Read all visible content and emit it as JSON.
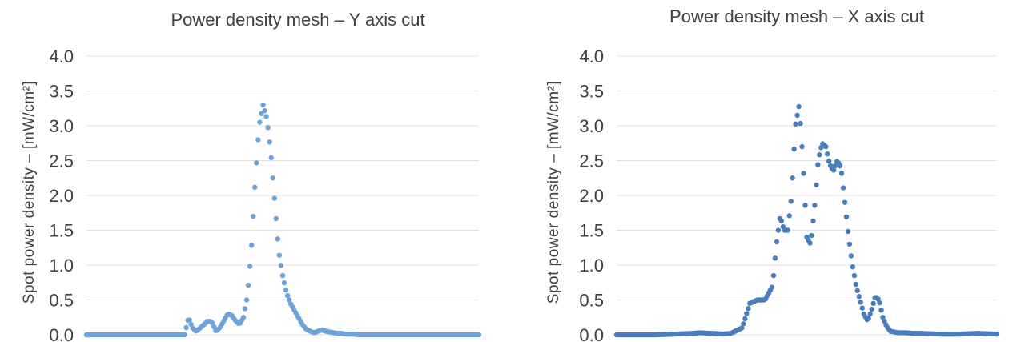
{
  "colors": {
    "left_series": "#6fa3d8",
    "right_series": "#4a7ebb",
    "grid": "#e0e0e0",
    "text": "#404040"
  },
  "chart_data": [
    {
      "type": "scatter",
      "title": "Power density mesh – Y axis cut",
      "ylabel": "Spot power density – [mW/cm²]",
      "xlabel": "",
      "ylim": [
        0,
        4
      ],
      "xlim": [
        0,
        100
      ],
      "yticks": [
        "0.0",
        "0.5",
        "1.0",
        "1.5",
        "2.0",
        "2.5",
        "3.0",
        "3.5",
        "4.0"
      ],
      "grid": true,
      "legend": "none",
      "series": [
        {
          "x": [
            0,
            5,
            10,
            15,
            20,
            25,
            26,
            27,
            28,
            29,
            30,
            31,
            32,
            33,
            34,
            35,
            36,
            37,
            38,
            39,
            40,
            41,
            42,
            43,
            44,
            45,
            46,
            47,
            48,
            49,
            50,
            51,
            52,
            53,
            54,
            55,
            56,
            57,
            58,
            59,
            60,
            61,
            62,
            63,
            64,
            65,
            66,
            67,
            68,
            69,
            70,
            72,
            74,
            76,
            78,
            80,
            85,
            90,
            95,
            100
          ],
          "y": [
            0,
            0,
            0,
            0,
            0,
            0,
            0.25,
            0.1,
            0.05,
            0.1,
            0.15,
            0.2,
            0.18,
            0.05,
            0.1,
            0.2,
            0.3,
            0.28,
            0.2,
            0.15,
            0.25,
            0.55,
            1.2,
            2.2,
            3.0,
            3.3,
            3.1,
            2.6,
            1.9,
            1.2,
            0.85,
            0.6,
            0.45,
            0.35,
            0.25,
            0.15,
            0.08,
            0.05,
            0.03,
            0.05,
            0.07,
            0.05,
            0.04,
            0.03,
            0.02,
            0.02,
            0.01,
            0.01,
            0.01,
            0,
            0,
            0,
            0,
            0,
            0,
            0,
            0,
            0,
            0,
            0
          ]
        }
      ]
    },
    {
      "type": "scatter",
      "title": "Power density mesh – X axis cut",
      "ylabel": "Spot power density – [mW/cm²]",
      "xlabel": "",
      "ylim": [
        0,
        4
      ],
      "xlim": [
        0,
        100
      ],
      "yticks": [
        "0.0",
        "0.5",
        "1.0",
        "1.5",
        "2.0",
        "2.5",
        "3.0",
        "3.5",
        "4.0"
      ],
      "grid": true,
      "legend": "none",
      "series": [
        {
          "x": [
            0,
            5,
            10,
            15,
            20,
            22,
            25,
            28,
            30,
            33,
            35,
            37,
            39,
            41,
            42,
            43,
            44,
            45,
            46,
            47,
            48,
            49,
            50,
            51,
            52,
            53,
            54,
            55,
            56,
            57,
            58,
            59,
            60,
            61,
            62,
            63,
            64,
            65,
            66,
            67,
            68,
            69,
            70,
            71,
            72,
            73,
            74,
            75,
            76,
            78,
            80,
            85,
            90,
            95,
            100
          ],
          "y": [
            0,
            0,
            0,
            0.01,
            0.02,
            0.03,
            0.02,
            0.01,
            0.02,
            0.1,
            0.45,
            0.5,
            0.5,
            0.7,
            1.3,
            1.7,
            1.5,
            1.5,
            2.0,
            3.0,
            3.3,
            2.5,
            1.4,
            1.3,
            1.8,
            2.5,
            2.75,
            2.7,
            2.45,
            2.35,
            2.5,
            2.4,
            1.9,
            1.4,
            1.0,
            0.7,
            0.5,
            0.3,
            0.2,
            0.35,
            0.55,
            0.5,
            0.25,
            0.12,
            0.05,
            0.04,
            0.03,
            0.03,
            0.03,
            0.02,
            0.02,
            0.01,
            0.01,
            0.02,
            0.01
          ]
        }
      ]
    }
  ]
}
